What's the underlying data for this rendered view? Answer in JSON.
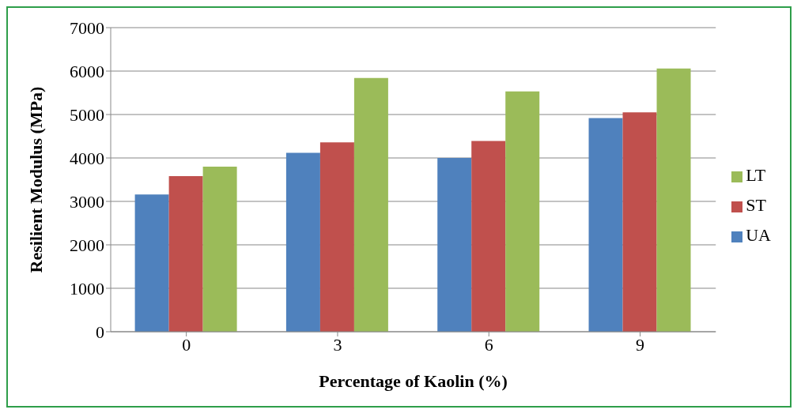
{
  "chart_data": {
    "type": "bar",
    "xlabel": "Percentage of Kaolin (%)",
    "ylabel": "Resilient Modulus (MPa)",
    "categories": [
      "0",
      "3",
      "6",
      "9"
    ],
    "series": [
      {
        "name": "UA",
        "color": "#4f81bd",
        "values": [
          3160,
          4120,
          4000,
          4920
        ]
      },
      {
        "name": "ST",
        "color": "#c0504d",
        "values": [
          3580,
          4360,
          4390,
          5050
        ]
      },
      {
        "name": "LT",
        "color": "#9bbb59",
        "values": [
          3800,
          5840,
          5530,
          6060
        ]
      }
    ],
    "ylim": [
      0,
      7000
    ],
    "yticks": [
      0,
      1000,
      2000,
      3000,
      4000,
      5000,
      6000,
      7000
    ],
    "grid": "y",
    "legend": "right"
  }
}
